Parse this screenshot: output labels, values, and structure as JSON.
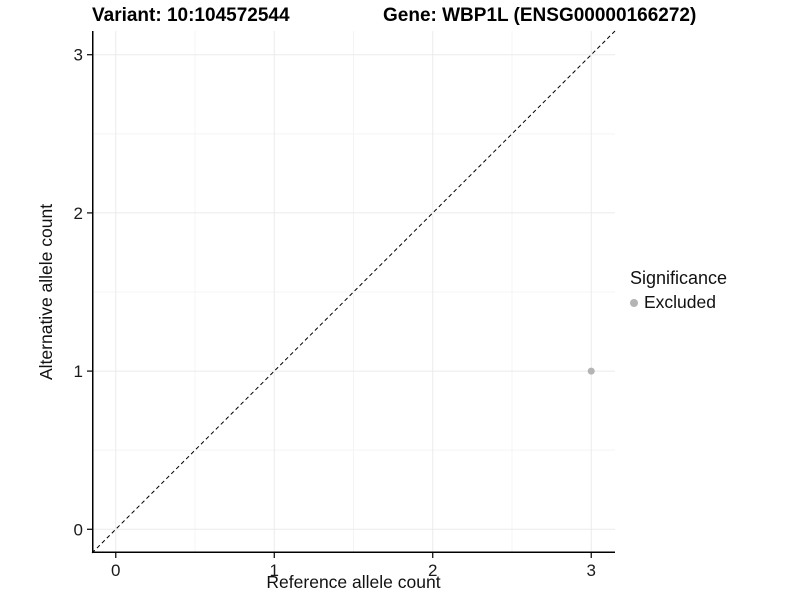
{
  "chart_data": {
    "type": "scatter",
    "title_left": "Variant: 10:104572544",
    "title_right": "Gene: WBP1L (ENSG00000166272)",
    "xlabel": "Reference allele count",
    "ylabel": "Alternative allele count",
    "xlim": [
      -0.15,
      3.15
    ],
    "ylim": [
      -0.15,
      3.15
    ],
    "xticks": [
      0,
      1,
      2,
      3
    ],
    "yticks": [
      0,
      1,
      2,
      3
    ],
    "minor_ticks": [
      0.5,
      1.5,
      2.5
    ],
    "grid": true,
    "identity_line": {
      "slope": 1,
      "intercept": 0,
      "style": "dashed",
      "color": "#000000"
    },
    "series": [
      {
        "name": "Excluded",
        "color": "#b4b4b4",
        "points": [
          {
            "x": 3,
            "y": 1
          }
        ]
      }
    ],
    "legend": {
      "title": "Significance",
      "position": "right",
      "entries": [
        {
          "label": "Excluded",
          "color": "#b4b4b4"
        }
      ]
    },
    "colors": {
      "background": "#ffffff",
      "grid_major": "#ebebeb",
      "grid_minor": "#f4f4f4",
      "axis_line": "#000000",
      "tick_label": "#1a1a1a",
      "point": "#b4b4b4"
    }
  }
}
